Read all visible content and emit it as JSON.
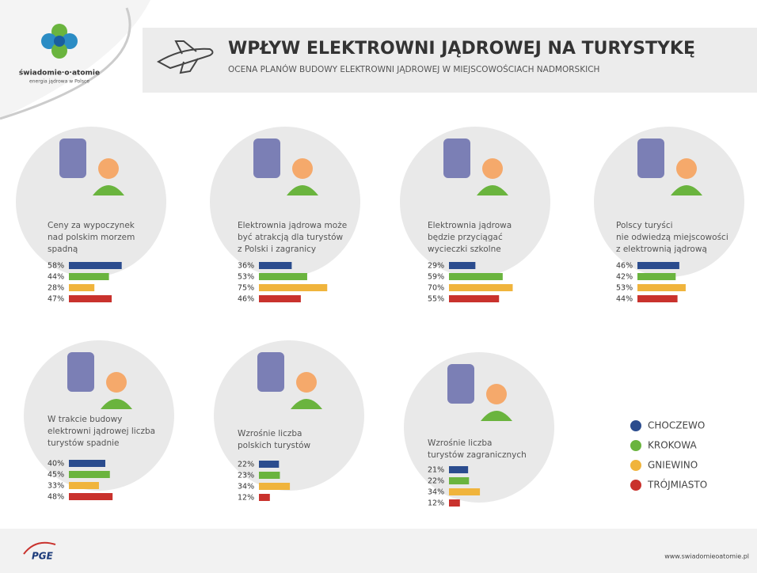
{
  "header": {
    "logo_name": "świadomie·o·atomie",
    "logo_tagline": "energia jądrowa w Polsce",
    "title": "WPŁYW ELEKTROWNI JĄDROWEJ NA TURYSTYKĘ",
    "subtitle": "OCENA PLANÓW BUDOWY ELEKTROWNI JĄDROWEJ W MIEJSCOWOŚCIACH NADMORSKICH"
  },
  "legend": [
    {
      "name": "CHOCZEWO",
      "color": "#2b4c8e"
    },
    {
      "name": "KROKOWA",
      "color": "#6ab43e"
    },
    {
      "name": "GNIEWINO",
      "color": "#f0b43c"
    },
    {
      "name": "TRÓJMIASTO",
      "color": "#c9322d"
    }
  ],
  "panels": [
    {
      "text": [
        "Ceny za wypoczynek",
        "nad polskim morzem",
        "spadną"
      ],
      "values": [
        58,
        44,
        28,
        47
      ],
      "value_labels": [
        "58%",
        "44%",
        "28%",
        "47%"
      ]
    },
    {
      "text": [
        "Elektrownia jądrowa może",
        "być atrakcją dla turystów",
        "z Polski i zagranicy"
      ],
      "values": [
        36,
        53,
        75,
        46
      ],
      "value_labels": [
        "36%",
        "53%",
        "75%",
        "46%"
      ]
    },
    {
      "text": [
        "Elektrownia jądrowa",
        "będzie przyciągać",
        "wycieczki szkolne"
      ],
      "values": [
        29,
        59,
        70,
        55
      ],
      "value_labels": [
        "29%",
        "59%",
        "70%",
        "55%"
      ]
    },
    {
      "text": [
        "Polscy turyści",
        "nie odwiedzą miejscowości",
        "z elektrownią jądrową"
      ],
      "values": [
        46,
        42,
        53,
        44
      ],
      "value_labels": [
        "46%",
        "42%",
        "53%",
        "44%"
      ]
    },
    {
      "text": [
        "W trakcie budowy",
        "elektrowni jądrowej liczba",
        "turystów spadnie"
      ],
      "values": [
        40,
        45,
        33,
        48
      ],
      "value_labels": [
        "40%",
        "45%",
        "33%",
        "48%"
      ]
    },
    {
      "text": [
        "Wzrośnie liczba",
        "polskich turystów"
      ],
      "values": [
        22,
        23,
        34,
        12
      ],
      "value_labels": [
        "22%",
        "23%",
        "34%",
        "12%"
      ]
    },
    {
      "text": [
        "Wzrośnie liczba",
        "turystów zagranicznych"
      ],
      "values": [
        21,
        22,
        34,
        12
      ],
      "value_labels": [
        "21%",
        "22%",
        "34%",
        "12%"
      ]
    }
  ],
  "footer": {
    "brand": "PGE",
    "url": "www.swiadomieoatomie.pl"
  }
}
